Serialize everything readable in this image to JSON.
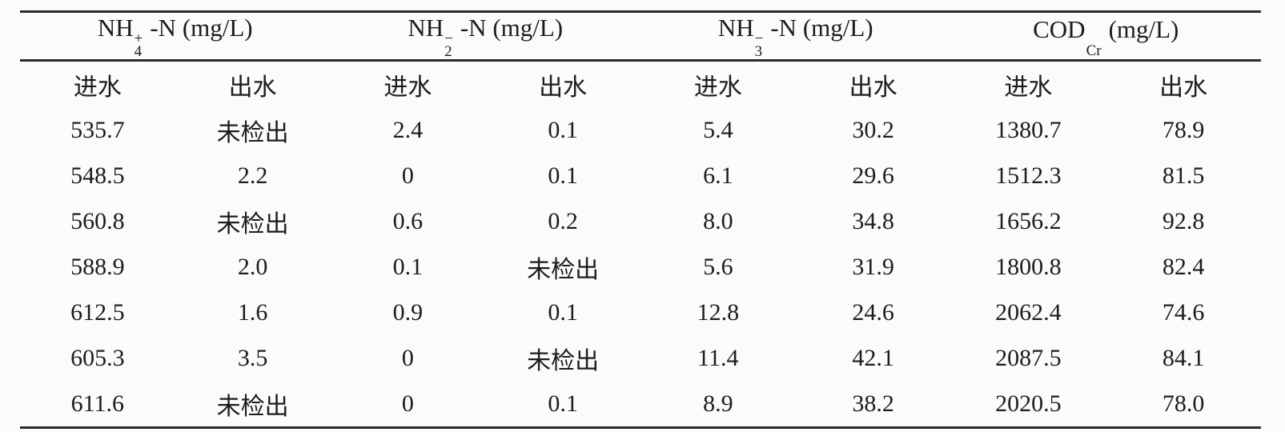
{
  "page": {
    "background": "#fbfbfb",
    "rule_color": "#2b2b2b",
    "text_color": "#1c1c1c"
  },
  "table": {
    "column_groups": [
      {
        "formula": "NH",
        "sup": "+",
        "sub": "4",
        "suffix": "-N (mg/L)"
      },
      {
        "formula": "NH",
        "sup": "−",
        "sub": "2",
        "suffix": "-N (mg/L)"
      },
      {
        "formula": "NH",
        "sup": "−",
        "sub": "3",
        "suffix": "-N (mg/L)"
      },
      {
        "formula": "COD",
        "sup": "",
        "sub": "Cr",
        "suffix": "(mg/L)"
      }
    ],
    "sub_headers": [
      "进水",
      "出水",
      "进水",
      "出水",
      "进水",
      "出水",
      "进水",
      "出水"
    ],
    "not_detected_label": "未检出",
    "rows": [
      [
        "535.7",
        "未检出",
        "2.4",
        "0.1",
        "5.4",
        "30.2",
        "1380.7",
        "78.9"
      ],
      [
        "548.5",
        "2.2",
        "0",
        "0.1",
        "6.1",
        "29.6",
        "1512.3",
        "81.5"
      ],
      [
        "560.8",
        "未检出",
        "0.6",
        "0.2",
        "8.0",
        "34.8",
        "1656.2",
        "92.8"
      ],
      [
        "588.9",
        "2.0",
        "0.1",
        "未检出",
        "5.6",
        "31.9",
        "1800.8",
        "82.4"
      ],
      [
        "612.5",
        "1.6",
        "0.9",
        "0.1",
        "12.8",
        "24.6",
        "2062.4",
        "74.6"
      ],
      [
        "605.3",
        "3.5",
        "0",
        "未检出",
        "11.4",
        "42.1",
        "2087.5",
        "84.1"
      ],
      [
        "611.6",
        "未检出",
        "0",
        "0.1",
        "8.9",
        "38.2",
        "2020.5",
        "78.0"
      ]
    ]
  }
}
